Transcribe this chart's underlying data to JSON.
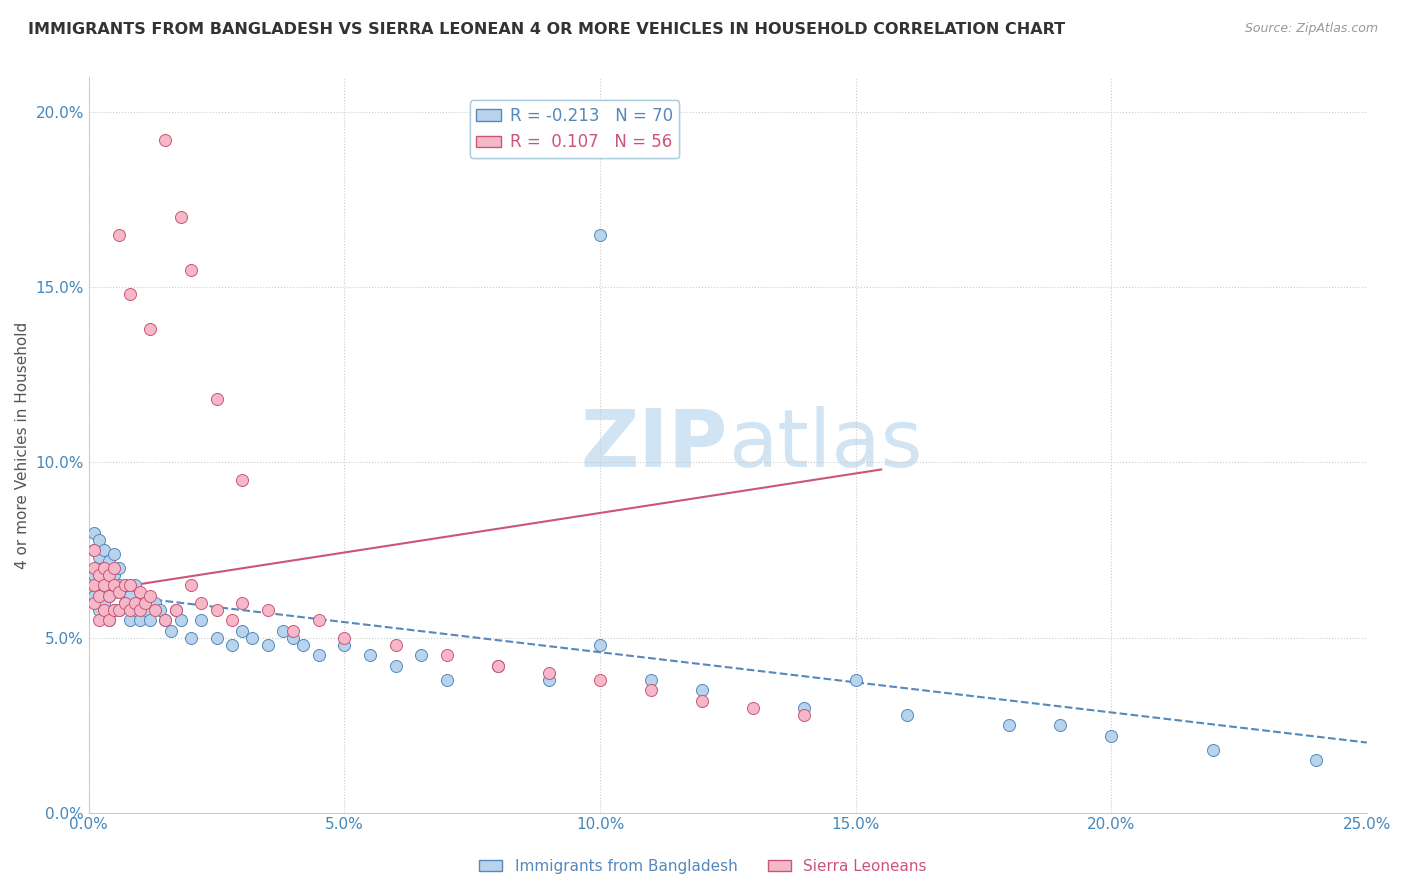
{
  "title": "IMMIGRANTS FROM BANGLADESH VS SIERRA LEONEAN 4 OR MORE VEHICLES IN HOUSEHOLD CORRELATION CHART",
  "source": "Source: ZipAtlas.com",
  "ylabel": "4 or more Vehicles in Household",
  "xlim": [
    0.0,
    0.25
  ],
  "ylim": [
    0.0,
    0.21
  ],
  "xticks": [
    0.0,
    0.05,
    0.1,
    0.15,
    0.2,
    0.25
  ],
  "yticks": [
    0.0,
    0.05,
    0.1,
    0.15,
    0.2
  ],
  "xticklabels": [
    "0.0%",
    "5.0%",
    "10.0%",
    "15.0%",
    "20.0%",
    "25.0%"
  ],
  "yticklabels": [
    "0.0%",
    "5.0%",
    "10.0%",
    "15.0%",
    "20.0%"
  ],
  "legend1_label": "R = -0.213   N = 70",
  "legend2_label": "R =  0.107   N = 56",
  "series1_label": "Immigrants from Bangladesh",
  "series2_label": "Sierra Leoneans",
  "series1_color": "#b8d4ed",
  "series2_color": "#f5b8c8",
  "series1_edge": "#5588bb",
  "series2_edge": "#cc5577",
  "trend1_color": "#5588bb",
  "trend2_color": "#cc5577",
  "watermark_zip": "ZIP",
  "watermark_atlas": "atlas",
  "watermark_color": "#d0e4f4",
  "title_color": "#333333",
  "axis_color": "#4488bb",
  "scatter1_x": [
    0.001,
    0.001,
    0.001,
    0.001,
    0.002,
    0.002,
    0.002,
    0.002,
    0.002,
    0.003,
    0.003,
    0.003,
    0.003,
    0.004,
    0.004,
    0.004,
    0.004,
    0.005,
    0.005,
    0.005,
    0.005,
    0.006,
    0.006,
    0.006,
    0.007,
    0.007,
    0.008,
    0.008,
    0.009,
    0.009,
    0.01,
    0.01,
    0.011,
    0.012,
    0.013,
    0.014,
    0.015,
    0.016,
    0.017,
    0.018,
    0.02,
    0.022,
    0.025,
    0.028,
    0.03,
    0.032,
    0.035,
    0.038,
    0.04,
    0.042,
    0.045,
    0.05,
    0.055,
    0.06,
    0.065,
    0.07,
    0.08,
    0.09,
    0.1,
    0.11,
    0.12,
    0.14,
    0.16,
    0.18,
    0.2,
    0.22,
    0.1,
    0.15,
    0.19,
    0.24
  ],
  "scatter1_y": [
    0.062,
    0.068,
    0.075,
    0.08,
    0.058,
    0.065,
    0.07,
    0.073,
    0.078,
    0.06,
    0.065,
    0.07,
    0.075,
    0.055,
    0.062,
    0.067,
    0.072,
    0.058,
    0.063,
    0.068,
    0.074,
    0.058,
    0.065,
    0.07,
    0.06,
    0.065,
    0.055,
    0.062,
    0.058,
    0.065,
    0.055,
    0.06,
    0.058,
    0.055,
    0.06,
    0.058,
    0.055,
    0.052,
    0.058,
    0.055,
    0.05,
    0.055,
    0.05,
    0.048,
    0.052,
    0.05,
    0.048,
    0.052,
    0.05,
    0.048,
    0.045,
    0.048,
    0.045,
    0.042,
    0.045,
    0.038,
    0.042,
    0.038,
    0.165,
    0.038,
    0.035,
    0.03,
    0.028,
    0.025,
    0.022,
    0.018,
    0.048,
    0.038,
    0.025,
    0.015
  ],
  "scatter2_x": [
    0.001,
    0.001,
    0.001,
    0.001,
    0.002,
    0.002,
    0.002,
    0.003,
    0.003,
    0.003,
    0.004,
    0.004,
    0.004,
    0.005,
    0.005,
    0.005,
    0.006,
    0.006,
    0.007,
    0.007,
    0.008,
    0.008,
    0.009,
    0.01,
    0.01,
    0.011,
    0.012,
    0.013,
    0.015,
    0.017,
    0.02,
    0.022,
    0.025,
    0.028,
    0.03,
    0.035,
    0.04,
    0.045,
    0.05,
    0.06,
    0.07,
    0.08,
    0.09,
    0.1,
    0.11,
    0.12,
    0.13,
    0.14,
    0.015,
    0.02,
    0.025,
    0.008,
    0.012,
    0.006,
    0.018,
    0.03
  ],
  "scatter2_y": [
    0.06,
    0.065,
    0.07,
    0.075,
    0.055,
    0.062,
    0.068,
    0.058,
    0.065,
    0.07,
    0.055,
    0.062,
    0.068,
    0.058,
    0.065,
    0.07,
    0.058,
    0.063,
    0.06,
    0.065,
    0.058,
    0.065,
    0.06,
    0.058,
    0.063,
    0.06,
    0.062,
    0.058,
    0.055,
    0.058,
    0.065,
    0.06,
    0.058,
    0.055,
    0.06,
    0.058,
    0.052,
    0.055,
    0.05,
    0.048,
    0.045,
    0.042,
    0.04,
    0.038,
    0.035,
    0.032,
    0.03,
    0.028,
    0.192,
    0.155,
    0.118,
    0.148,
    0.138,
    0.165,
    0.17,
    0.095
  ],
  "trend1_x": [
    0.0,
    0.25
  ],
  "trend1_y": [
    0.063,
    0.02
  ],
  "trend2_x": [
    0.0,
    0.155
  ],
  "trend2_y": [
    0.063,
    0.098
  ]
}
